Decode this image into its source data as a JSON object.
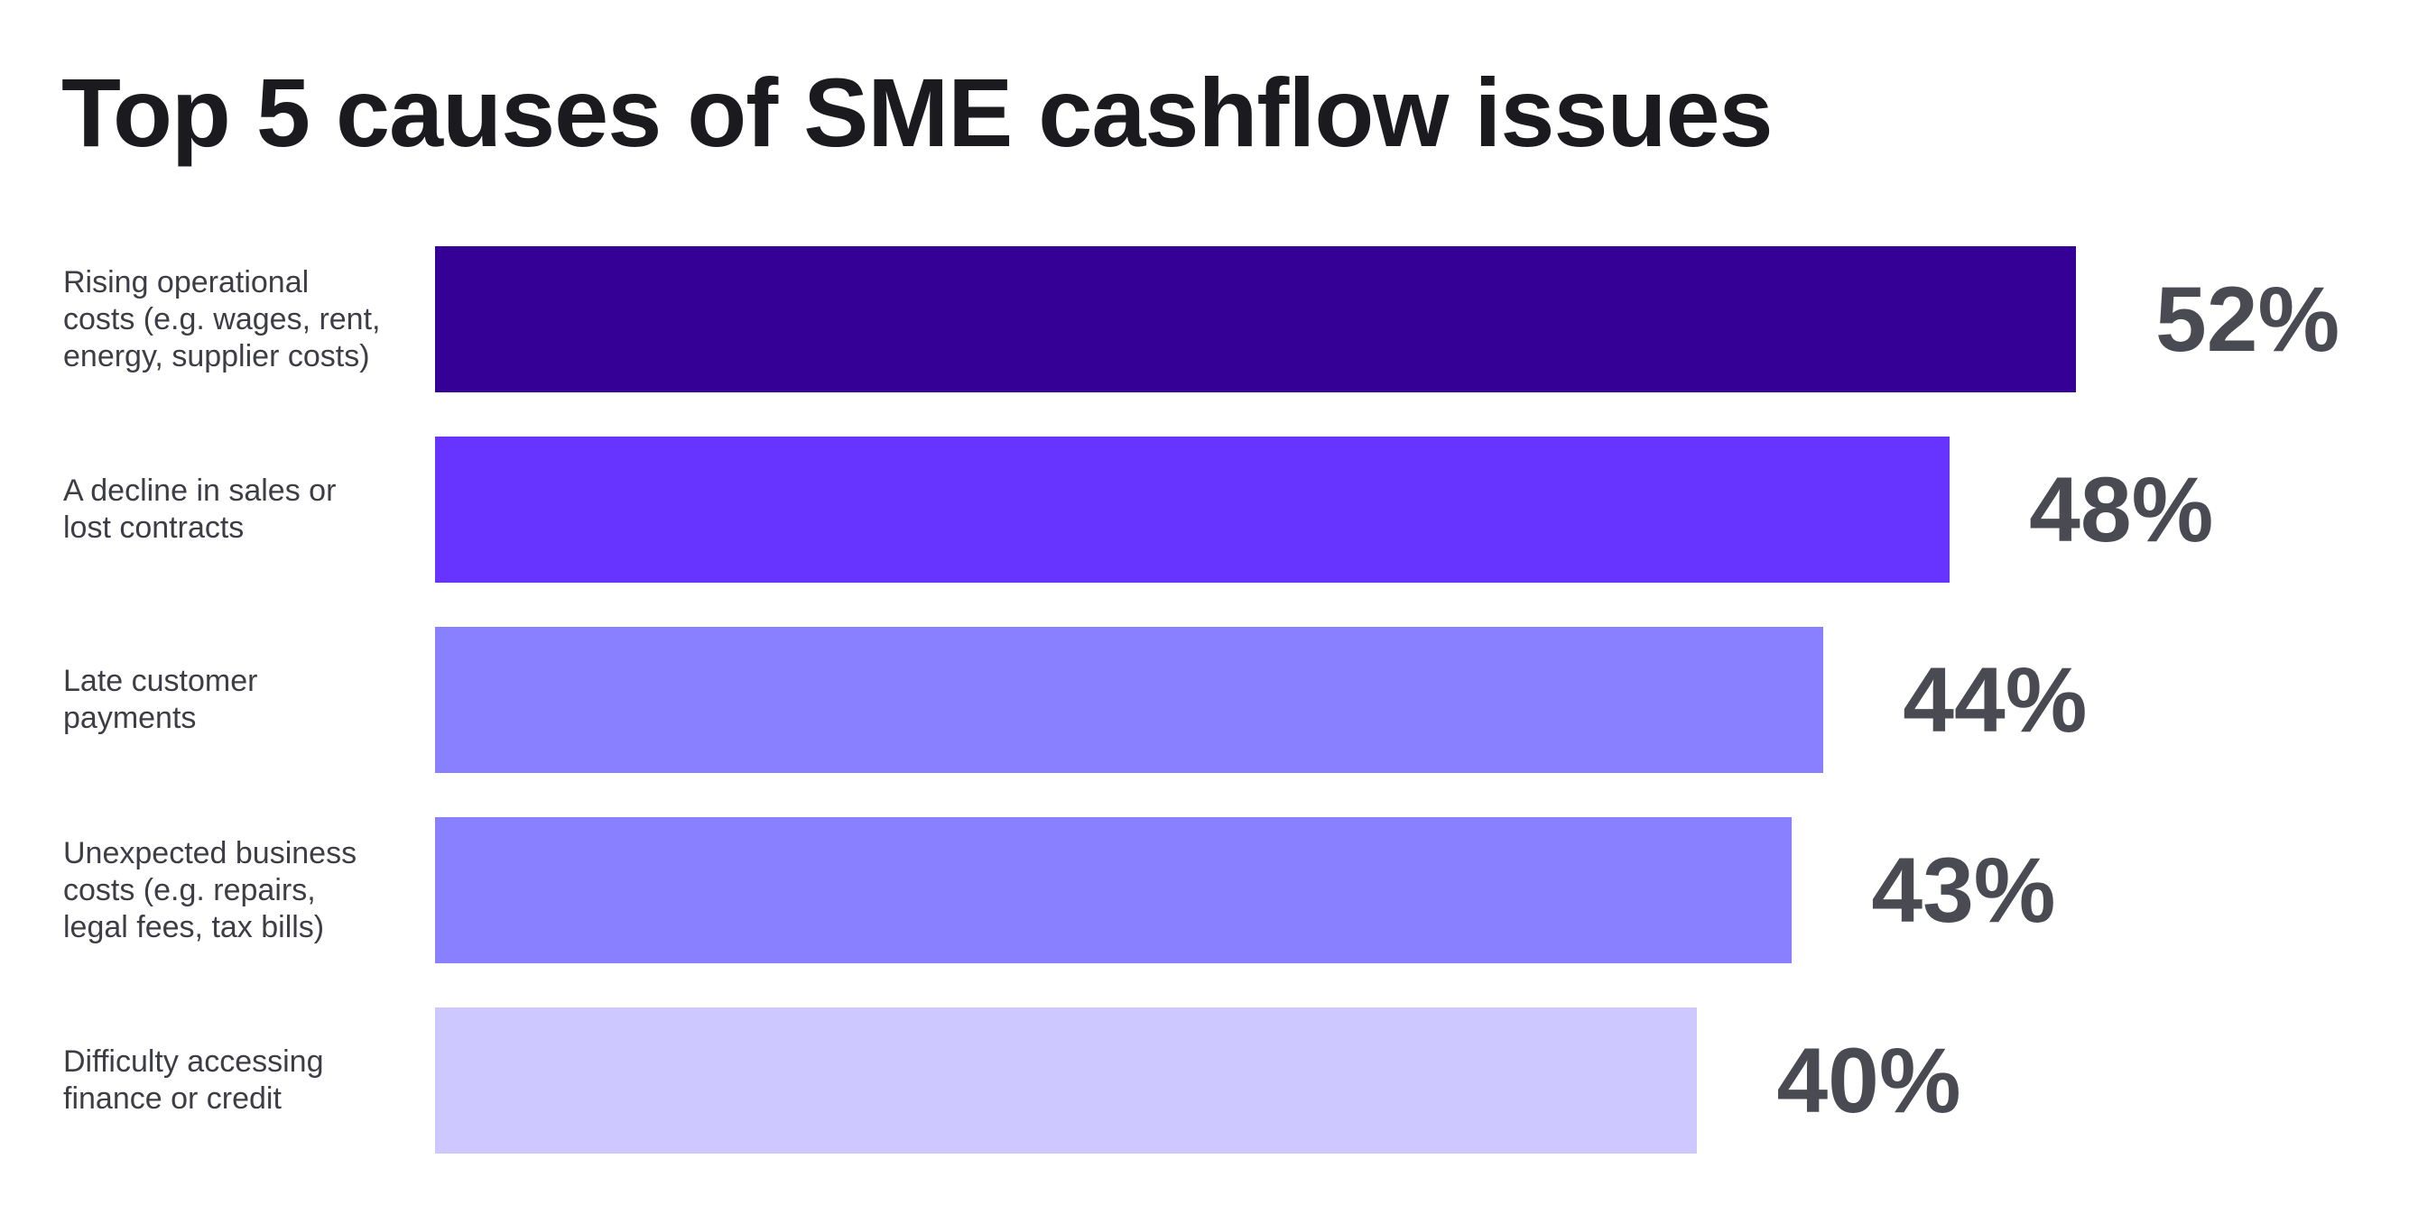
{
  "chart_data": {
    "type": "bar",
    "orientation": "horizontal",
    "title": "Top 5 causes of SME cashflow issues",
    "xlabel": "",
    "ylabel": "",
    "xlim": [
      0,
      52
    ],
    "grid": false,
    "categories": [
      "Rising operational\ncosts (e.g. wages, rent,\nenergy, supplier costs)",
      "A decline in sales or\nlost contracts",
      "Late customer\npayments",
      "Unexpected business\ncosts (e.g. repairs,\nlegal fees, tax bills)",
      "Difficulty accessing\nfinance or credit"
    ],
    "values": [
      52,
      48,
      44,
      43,
      40
    ],
    "value_labels": [
      "52%",
      "48%",
      "44%",
      "43%",
      "40%"
    ],
    "colors": [
      "#340096",
      "#6633ff",
      "#8880ff",
      "#8880ff",
      "#cdc8ff"
    ]
  }
}
